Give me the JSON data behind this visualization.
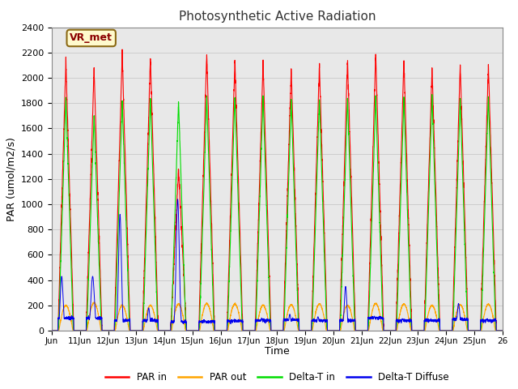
{
  "title": "Photosynthetic Active Radiation",
  "xlabel": "Time",
  "ylabel": "PAR (umol/m2/s)",
  "ylim": [
    0,
    2400
  ],
  "yticks": [
    0,
    200,
    400,
    600,
    800,
    1000,
    1200,
    1400,
    1600,
    1800,
    2000,
    2200,
    2400
  ],
  "x_labels": [
    "Jun",
    "11Jun",
    "12Jun",
    "13Jun",
    "14Jun",
    "15Jun",
    "16Jun",
    "17Jun",
    "18Jun",
    "19Jun",
    "20Jun",
    "21Jun",
    "22Jun",
    "23Jun",
    "24Jun",
    "25Jun",
    "26"
  ],
  "annotation_text": "VR_met",
  "colors": {
    "par_in": "#FF0000",
    "par_out": "#FFA500",
    "delta_t_in": "#00DD00",
    "delta_t_diffuse": "#0000EE",
    "background": "#E8E8E8",
    "grid": "#C8C8C8"
  },
  "legend": {
    "par_in": "PAR in",
    "par_out": "PAR out",
    "delta_t_in": "Delta-T in",
    "delta_t_diffuse": "Delta-T Diffuse"
  },
  "par_in_peaks": [
    2130,
    2080,
    2200,
    2160,
    1280,
    2200,
    2140,
    2130,
    2070,
    2100,
    2150,
    2200,
    2140,
    2080,
    2100,
    2100
  ],
  "par_out_peaks": [
    200,
    220,
    200,
    200,
    210,
    215,
    210,
    200,
    205,
    210,
    200,
    215,
    210,
    200,
    205,
    210
  ],
  "delta_t_in_peaks": [
    1850,
    1700,
    1820,
    1850,
    1820,
    1860,
    1870,
    1860,
    1830,
    1840,
    1840,
    1850,
    1840,
    1860,
    1840,
    1850
  ],
  "delta_t_diffuse_flat": [
    420,
    100,
    920,
    180,
    1040,
    80,
    85,
    100,
    130,
    110,
    350,
    115,
    95,
    90,
    215,
    90
  ],
  "blue_daytime_base": [
    100,
    90,
    85,
    80,
    75,
    70,
    75,
    80,
    85,
    90,
    80,
    100,
    80,
    80,
    90,
    80
  ]
}
